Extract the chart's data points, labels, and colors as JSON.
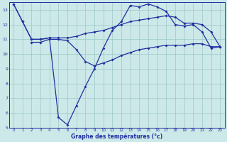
{
  "title": "Graphe des températures (°c)",
  "bg_color": "#cce8e8",
  "line_color": "#2030a0",
  "grid_color": "#9cc8c8",
  "xlim": [
    -0.5,
    23.5
  ],
  "ylim": [
    5,
    13.5
  ],
  "yticks": [
    5,
    6,
    7,
    8,
    9,
    10,
    11,
    12,
    13
  ],
  "xticks": [
    0,
    1,
    2,
    3,
    4,
    5,
    6,
    7,
    8,
    9,
    10,
    11,
    12,
    13,
    14,
    15,
    16,
    17,
    18,
    19,
    20,
    21,
    22,
    23
  ],
  "line1_x": [
    0,
    1,
    2,
    3,
    4,
    5,
    6,
    7,
    8,
    9,
    10,
    11,
    12,
    13,
    14,
    15,
    16,
    17,
    18,
    19,
    20,
    21,
    22,
    23
  ],
  "line1_y": [
    13.4,
    12.2,
    11.0,
    11.0,
    11.1,
    5.7,
    5.2,
    6.5,
    7.8,
    9.0,
    10.4,
    11.6,
    12.2,
    13.3,
    13.2,
    13.4,
    13.2,
    12.9,
    12.0,
    11.9,
    12.0,
    11.5,
    10.4,
    10.5
  ],
  "line2_x": [
    0,
    1,
    2,
    3,
    4,
    5,
    6,
    7,
    8,
    9,
    10,
    11,
    12,
    13,
    14,
    15,
    16,
    17,
    18,
    19,
    20,
    21,
    22,
    23
  ],
  "line2_y": [
    13.4,
    12.2,
    11.0,
    11.0,
    11.1,
    11.1,
    11.1,
    11.2,
    11.4,
    11.5,
    11.6,
    11.8,
    12.0,
    12.2,
    12.3,
    12.4,
    12.5,
    12.6,
    12.5,
    12.1,
    12.1,
    12.0,
    11.5,
    10.5
  ],
  "line3_x": [
    2,
    3,
    4,
    5,
    6,
    7,
    8,
    9,
    10,
    11,
    12,
    13,
    14,
    15,
    16,
    17,
    18,
    19,
    20,
    21,
    22,
    23
  ],
  "line3_y": [
    10.8,
    10.8,
    11.0,
    11.0,
    10.9,
    10.3,
    9.5,
    9.2,
    9.4,
    9.6,
    9.9,
    10.1,
    10.3,
    10.4,
    10.5,
    10.6,
    10.6,
    10.6,
    10.7,
    10.7,
    10.5,
    10.5
  ]
}
